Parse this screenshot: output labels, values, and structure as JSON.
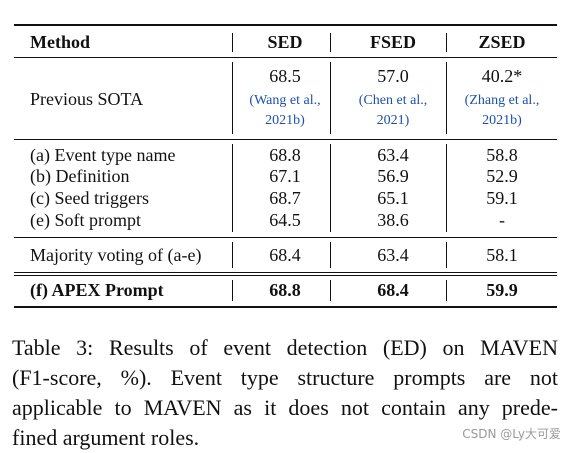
{
  "table": {
    "header": [
      "Method",
      "SED",
      "FSED",
      "ZSED"
    ],
    "sota": {
      "label": "Previous SOTA",
      "cells": [
        {
          "value": "68.5",
          "cite": [
            "(Wang et al.,",
            "2021b)"
          ]
        },
        {
          "value": "57.0",
          "cite": [
            "(Chen et al.,",
            "2021)"
          ]
        },
        {
          "value": "40.2*",
          "cite": [
            "(Zhang et al.,",
            "2021b)"
          ]
        }
      ]
    },
    "groups": [
      [
        [
          "(a) Event type name",
          "68.8",
          "63.4",
          "58.8"
        ],
        [
          "(b) Definition",
          "67.1",
          "56.9",
          "52.9"
        ],
        [
          "(c) Seed triggers",
          "68.7",
          "65.1",
          "59.1"
        ],
        [
          "(e) Soft prompt",
          "64.5",
          "38.6",
          "-"
        ]
      ],
      [
        [
          "Majority voting of (a-e)",
          "68.4",
          "63.4",
          "58.1"
        ]
      ],
      [
        [
          "(f) APEX Prompt",
          "68.8",
          "68.4",
          "59.9"
        ]
      ]
    ]
  },
  "caption": [
    "Table 3: Results of event detection (ED) on MAVEN",
    "(F1-score, %). Event type structure prompts are not",
    "applicable to MAVEN as it does not contain any prede-",
    "fined argument roles."
  ],
  "watermark": "CSDN @Ly大可爱"
}
